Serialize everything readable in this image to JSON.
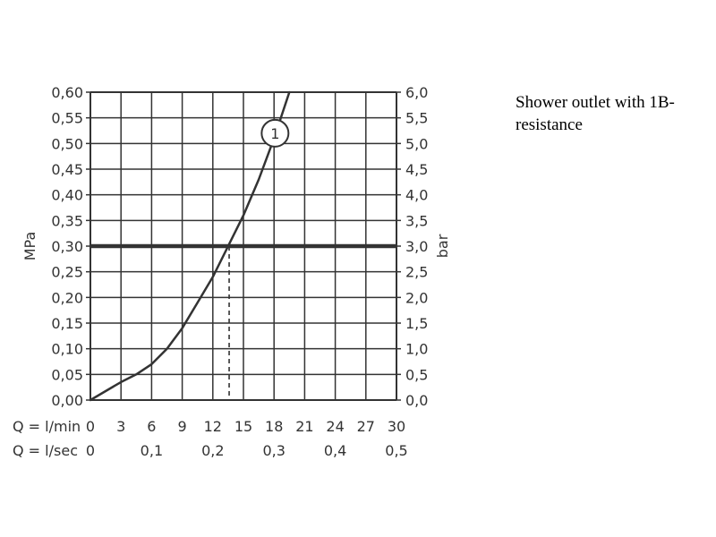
{
  "caption": "Shower outlet with 1B-resistance",
  "chart_data": {
    "type": "line",
    "ylabel_left": "MPa",
    "ylabel_right": "bar",
    "x_unit_label": "Q = l/min",
    "x2_unit_label": "Q = l/sec",
    "xlim": [
      0,
      30
    ],
    "ylim": [
      0,
      0.6
    ],
    "x_ticks": [
      "0",
      "3",
      "6",
      "9",
      "12",
      "15",
      "18",
      "21",
      "24",
      "27",
      "30"
    ],
    "x2_ticks": [
      {
        "value": 0,
        "label": "0"
      },
      {
        "value": 6,
        "label": "0,1"
      },
      {
        "value": 12,
        "label": "0,2"
      },
      {
        "value": 18,
        "label": "0,3"
      },
      {
        "value": 24,
        "label": "0,4"
      },
      {
        "value": 30,
        "label": "0,5"
      }
    ],
    "y_ticks_left": [
      "0,00",
      "0,05",
      "0,10",
      "0,15",
      "0,20",
      "0,25",
      "0,30",
      "0,35",
      "0,40",
      "0,45",
      "0,50",
      "0,55",
      "0,60"
    ],
    "y_ticks_right": [
      "0,0",
      "0,5",
      "1,0",
      "1,5",
      "2,0",
      "2,5",
      "3,0",
      "3,5",
      "4,0",
      "4,5",
      "5,0",
      "5,5",
      "6,0"
    ],
    "grid": true,
    "series": [
      {
        "marker_label": "1",
        "marker_at": [
          18.1,
          0.52
        ],
        "x": [
          0,
          3,
          4.5,
          6,
          7.5,
          9,
          10.5,
          12,
          13.5,
          15,
          16.5,
          18,
          19.5
        ],
        "y": [
          0,
          0.035,
          0.05,
          0.07,
          0.1,
          0.14,
          0.19,
          0.24,
          0.3,
          0.36,
          0.43,
          0.51,
          0.6
        ]
      }
    ],
    "reference_line": {
      "y": 0.3
    },
    "reference_drop": {
      "x": 13.6,
      "y": 0.3
    }
  }
}
